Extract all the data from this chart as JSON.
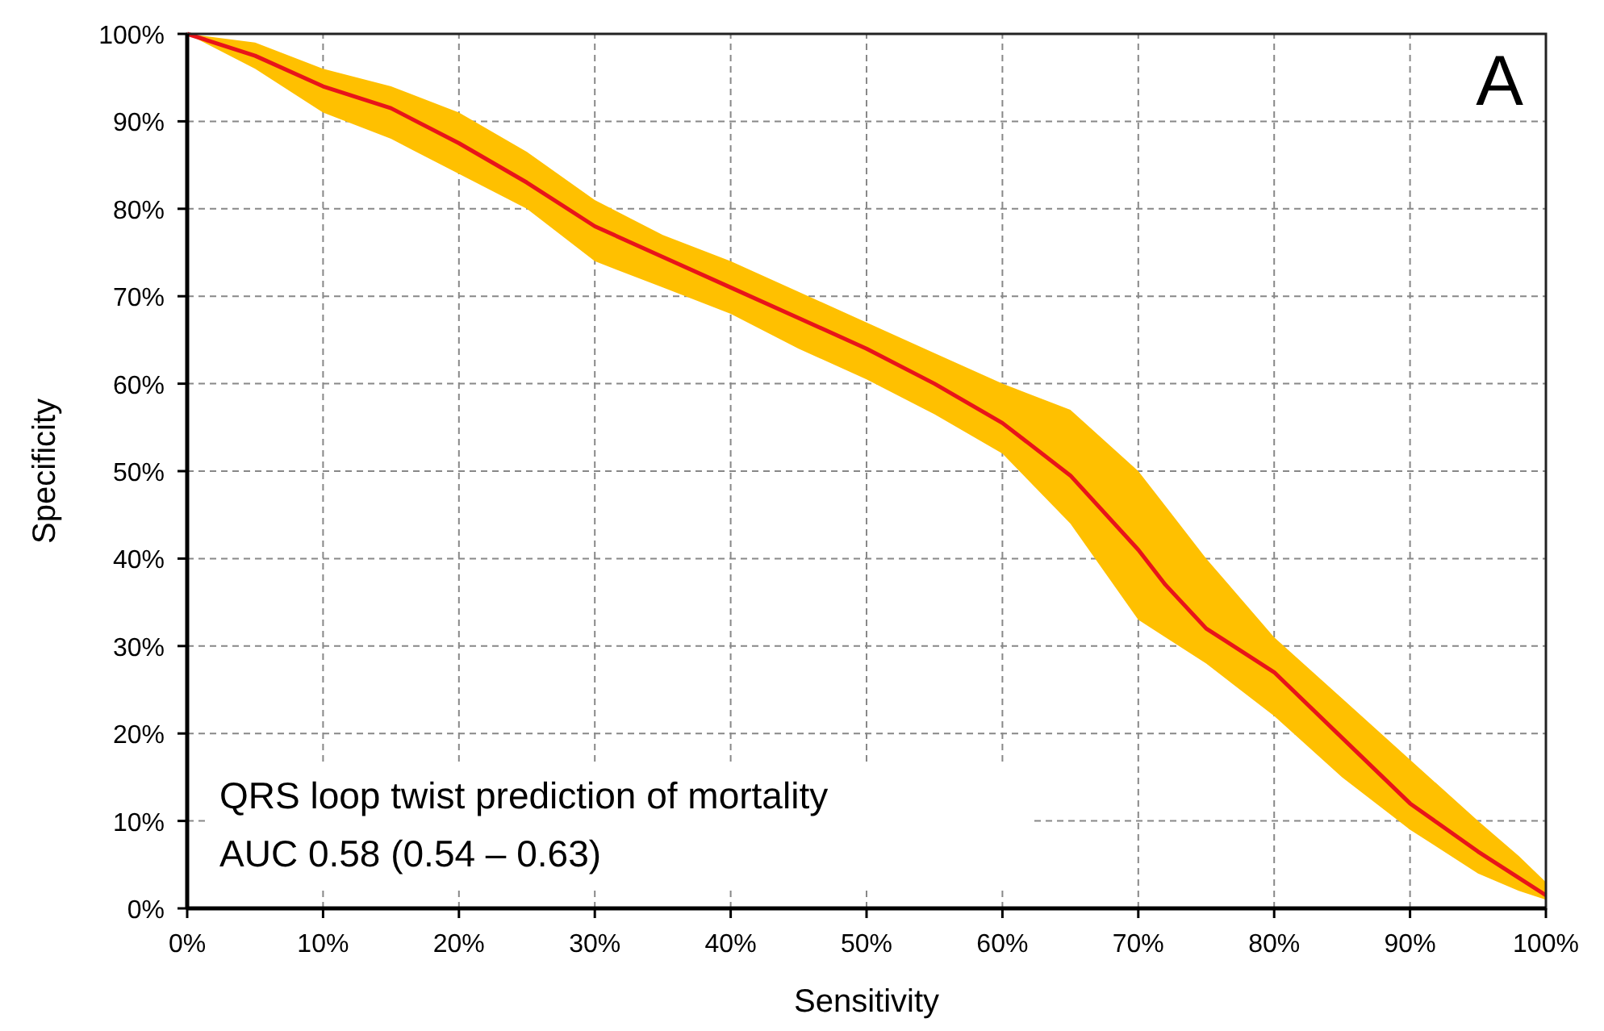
{
  "chart_data": {
    "type": "line",
    "xlabel": "Sensitivity",
    "ylabel": "Specificity",
    "annotations": [
      "A",
      "QRS loop twist prediction of mortality",
      "AUC 0.58 (0.54 – 0.63)"
    ],
    "xlim": [
      0,
      100
    ],
    "ylim": [
      0,
      100
    ],
    "xticks": [
      {
        "value": 0,
        "label": "0%"
      },
      {
        "value": 10,
        "label": "10%"
      },
      {
        "value": 20,
        "label": "20%"
      },
      {
        "value": 30,
        "label": "30%"
      },
      {
        "value": 40,
        "label": "40%"
      },
      {
        "value": 50,
        "label": "50%"
      },
      {
        "value": 60,
        "label": "60%"
      },
      {
        "value": 70,
        "label": "70%"
      },
      {
        "value": 80,
        "label": "80%"
      },
      {
        "value": 90,
        "label": "90%"
      },
      {
        "value": 100,
        "label": "100%"
      }
    ],
    "yticks": [
      {
        "value": 0,
        "label": "0%"
      },
      {
        "value": 10,
        "label": "10%"
      },
      {
        "value": 20,
        "label": "20%"
      },
      {
        "value": 30,
        "label": "30%"
      },
      {
        "value": 40,
        "label": "40%"
      },
      {
        "value": 50,
        "label": "50%"
      },
      {
        "value": 60,
        "label": "60%"
      },
      {
        "value": 70,
        "label": "70%"
      },
      {
        "value": 80,
        "label": "80%"
      },
      {
        "value": 90,
        "label": "90%"
      },
      {
        "value": 100,
        "label": "100%"
      }
    ],
    "grid": true,
    "marker": "none",
    "line_style": "solid",
    "x": [
      0,
      5,
      10,
      15,
      20,
      25,
      30,
      35,
      40,
      45,
      50,
      55,
      60,
      65,
      70,
      72,
      75,
      80,
      85,
      90,
      95,
      98,
      100
    ],
    "series": [
      {
        "color": "#e8141a",
        "values": [
          100,
          97.5,
          94,
          91.5,
          87.5,
          83,
          78,
          74.5,
          71,
          67.5,
          64,
          60,
          55.5,
          49.5,
          41,
          37,
          32,
          27,
          19.5,
          12,
          6.5,
          3.5,
          1.5
        ],
        "lower": [
          100,
          96,
          91,
          88,
          84,
          80,
          74,
          71,
          68,
          64,
          60.5,
          56.5,
          52,
          44,
          33,
          31,
          28,
          22,
          15,
          9,
          4,
          2,
          1
        ],
        "upper": [
          100,
          99,
          96,
          94,
          91,
          86.5,
          81,
          77,
          74,
          70.5,
          67,
          63.5,
          60,
          57,
          50,
          46,
          40,
          31,
          24,
          17,
          10,
          6,
          3
        ]
      }
    ]
  }
}
